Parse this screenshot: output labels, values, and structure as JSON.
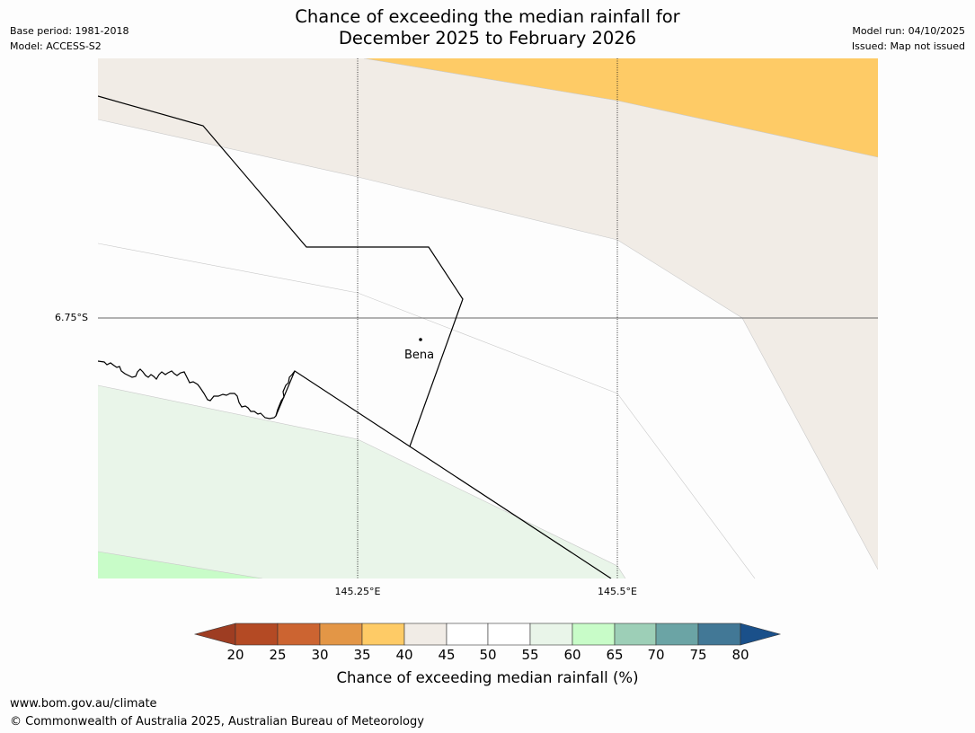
{
  "header": {
    "title_line1": "Chance of exceeding the median rainfall for",
    "title_line2": "December 2025 to February 2026",
    "base_period": "Base period: 1981-2018",
    "model": "Model: ACCESS-S2",
    "model_run": "Model run: 04/10/2025",
    "issued": "Issued: Map not issued"
  },
  "map": {
    "lat_label": "6.75°S",
    "lon_labels": [
      "145.25°E",
      "145.5°E"
    ],
    "town": "Bena"
  },
  "colorbar": {
    "title": "Chance of exceeding median rainfall (%)",
    "ticks": [
      "20",
      "25",
      "30",
      "35",
      "40",
      "45",
      "50",
      "55",
      "60",
      "65",
      "70",
      "75",
      "80"
    ],
    "colors": {
      "below_20": "#9e3d22",
      "20-25": "#b44a24",
      "25-30": "#cc6431",
      "30-35": "#e39646",
      "35-40": "#fecb66",
      "40-45": "#f1ece6",
      "45-50": "#ffffff",
      "50-55": "#ffffff",
      "55-60": "#e9f5e9",
      "60-65": "#c8fcc8",
      "65-70": "#9dcfb7",
      "70-75": "#6ba4a5",
      "75-80": "#427896",
      "above_80": "#1a508a"
    }
  },
  "footer": {
    "url": "www.bom.gov.au/climate",
    "copyright": "© Commonwealth of Australia 2025, Australian Bureau of Meteorology"
  }
}
